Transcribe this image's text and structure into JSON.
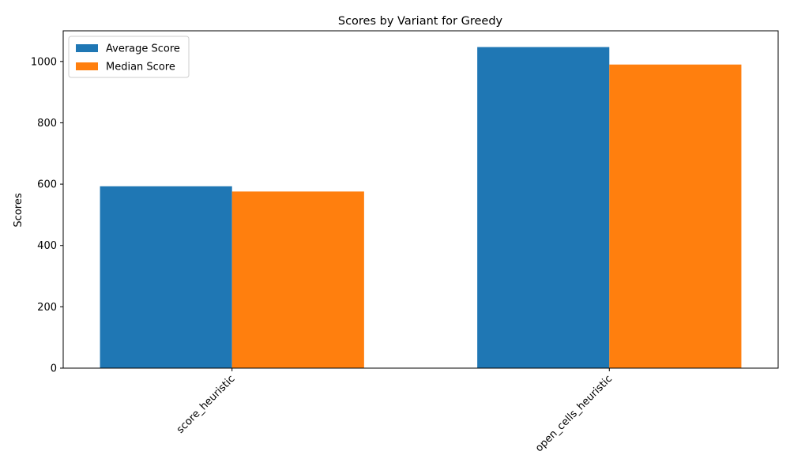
{
  "chart_data": {
    "type": "bar",
    "title": "Scores by Variant for Greedy",
    "xlabel": "",
    "ylabel": "Scores",
    "categories": [
      "score_heuristic",
      "open_cells_heuristic"
    ],
    "series": [
      {
        "name": "Average Score",
        "values": [
          593,
          1047
        ],
        "color": "#1f77b4"
      },
      {
        "name": "Median Score",
        "values": [
          576,
          990
        ],
        "color": "#ff7f0e"
      }
    ],
    "ylim": [
      0,
      1100
    ],
    "yticks": [
      0,
      200,
      400,
      600,
      800,
      1000
    ],
    "legend_position": "top-left",
    "grid": false
  }
}
